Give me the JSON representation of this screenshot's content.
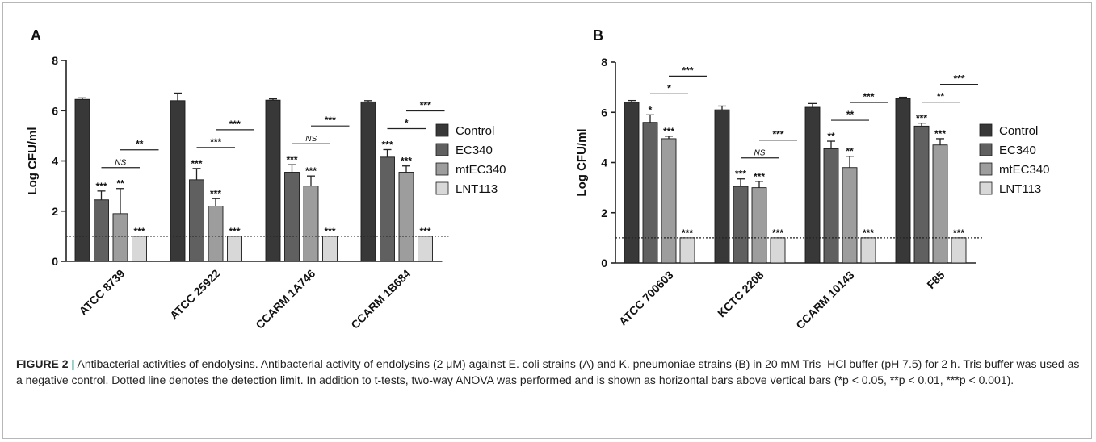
{
  "colors": {
    "Control": "#383838",
    "EC340": "#606060",
    "mtEC340": "#9d9d9d",
    "LNT113": "#d8d8d8"
  },
  "legend": [
    "Control",
    "EC340",
    "mtEC340",
    "LNT113"
  ],
  "caption": {
    "label": "FIGURE 2",
    "separator": "|",
    "text": " Antibacterial activities of endolysins. Antibacterial activity of endolysins (2 μM) against E. coli strains (A) and K. pneumoniae strains (B) in 20 mM Tris–HCl buffer (pH 7.5) for 2 h. Tris buffer was used as a negative control. Dotted line denotes the detection limit. In addition to t-tests, two-way ANOVA was performed and is shown as horizontal bars above vertical bars (*p < 0.05, **p < 0.01, ***p < 0.001)."
  },
  "chart_data": [
    {
      "panel": "A",
      "type": "bar",
      "ylabel": "Log CFU/ml",
      "ylim": [
        0,
        8
      ],
      "yticks": [
        0,
        2,
        4,
        6,
        8
      ],
      "detection_limit": 1,
      "categories": [
        "ATCC 8739",
        "ATCC 25922",
        "CCARM 1A746",
        "CCARM 1B684"
      ],
      "series": [
        {
          "name": "Control",
          "values": [
            6.45,
            6.4,
            6.42,
            6.35
          ],
          "errors": [
            0.06,
            0.3,
            0.05,
            0.05
          ],
          "stars": [
            "",
            "",
            "",
            ""
          ]
        },
        {
          "name": "EC340",
          "values": [
            2.45,
            3.25,
            3.55,
            4.15
          ],
          "errors": [
            0.35,
            0.45,
            0.3,
            0.3
          ],
          "stars": [
            "***",
            "***",
            "***",
            "***"
          ]
        },
        {
          "name": "mtEC340",
          "values": [
            1.9,
            2.2,
            3.0,
            3.55
          ],
          "errors": [
            1.0,
            0.3,
            0.4,
            0.25
          ],
          "stars": [
            "**",
            "***",
            "***",
            "***"
          ]
        },
        {
          "name": "LNT113",
          "values": [
            1.0,
            1.0,
            1.0,
            1.0
          ],
          "errors": [
            0,
            0,
            0,
            0
          ],
          "stars": [
            "***",
            "***",
            "***",
            "***"
          ]
        }
      ],
      "comparisons": [
        {
          "category": 0,
          "from": 1,
          "to": 2,
          "label": "NS"
        },
        {
          "category": 0,
          "from": 2,
          "to": 3,
          "label": "**"
        },
        {
          "category": 1,
          "from": 1,
          "to": 2,
          "label": "***"
        },
        {
          "category": 1,
          "from": 2,
          "to": 3,
          "label": "***"
        },
        {
          "category": 2,
          "from": 1,
          "to": 2,
          "label": "NS"
        },
        {
          "category": 2,
          "from": 2,
          "to": 3,
          "label": "***"
        },
        {
          "category": 3,
          "from": 1,
          "to": 2,
          "label": "*"
        },
        {
          "category": 3,
          "from": 2,
          "to": 3,
          "label": "***"
        }
      ]
    },
    {
      "panel": "B",
      "type": "bar",
      "ylabel": "Log CFU/ml",
      "ylim": [
        0,
        8
      ],
      "yticks": [
        0,
        2,
        4,
        6,
        8
      ],
      "detection_limit": 1,
      "categories": [
        "ATCC 700603",
        "KCTC 2208",
        "CCARM 10143",
        "F85"
      ],
      "series": [
        {
          "name": "Control",
          "values": [
            6.4,
            6.1,
            6.2,
            6.55
          ],
          "errors": [
            0.07,
            0.15,
            0.15,
            0.05
          ],
          "stars": [
            "",
            "",
            "",
            ""
          ]
        },
        {
          "name": "EC340",
          "values": [
            5.6,
            3.05,
            4.55,
            5.45
          ],
          "errors": [
            0.3,
            0.3,
            0.3,
            0.12
          ],
          "stars": [
            "*",
            "***",
            "**",
            "***"
          ]
        },
        {
          "name": "mtEC340",
          "values": [
            4.95,
            3.0,
            3.8,
            4.7
          ],
          "errors": [
            0.1,
            0.25,
            0.45,
            0.25
          ],
          "stars": [
            "***",
            "***",
            "**",
            "***"
          ]
        },
        {
          "name": "LNT113",
          "values": [
            1.0,
            1.0,
            1.0,
            1.0
          ],
          "errors": [
            0,
            0,
            0,
            0
          ],
          "stars": [
            "***",
            "***",
            "***",
            "***"
          ]
        }
      ],
      "comparisons": [
        {
          "category": 0,
          "from": 1,
          "to": 2,
          "label": "*"
        },
        {
          "category": 0,
          "from": 2,
          "to": 3,
          "label": "***"
        },
        {
          "category": 1,
          "from": 1,
          "to": 2,
          "label": "NS"
        },
        {
          "category": 1,
          "from": 2,
          "to": 3,
          "label": "***"
        },
        {
          "category": 2,
          "from": 1,
          "to": 2,
          "label": "**"
        },
        {
          "category": 2,
          "from": 2,
          "to": 3,
          "label": "***"
        },
        {
          "category": 3,
          "from": 1,
          "to": 2,
          "label": "**"
        },
        {
          "category": 3,
          "from": 2,
          "to": 3,
          "label": "***"
        }
      ]
    }
  ]
}
